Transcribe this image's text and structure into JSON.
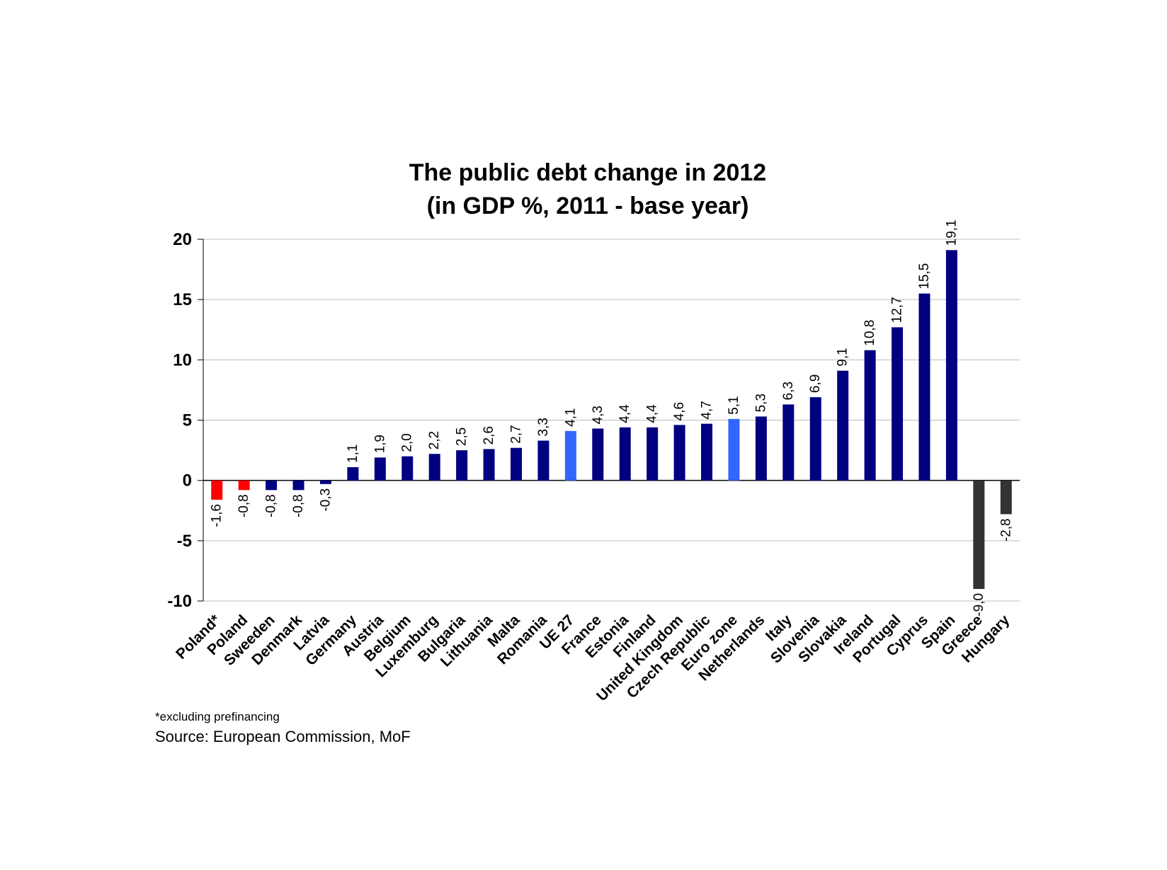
{
  "chart_data": {
    "type": "bar",
    "title": "The public debt change in 2012",
    "subtitle": "(in GDP %, 2011 - base year)",
    "xlabel": "",
    "ylabel": "",
    "ylim": [
      -10,
      20
    ],
    "yticks": [
      20,
      15,
      10,
      5,
      0,
      -5,
      -10
    ],
    "grid": true,
    "legend": "none",
    "categories": [
      "Poland*",
      "Poland",
      "Sweeden",
      "Denmark",
      "Latvia",
      "Germany",
      "Austria",
      "Belgium",
      "Luxemburg",
      "Bulgaria",
      "Lithuania",
      "Malta",
      "Romania",
      "UE 27",
      "France",
      "Estonia",
      "Finland",
      "United Kingdom",
      "Czech Republic",
      "Euro zone",
      "Netherlands",
      "Italy",
      "Slovenia",
      "Slovakia",
      "Ireland",
      "Portugal",
      "Cyprus",
      "Spain",
      "Greece",
      "Hungary"
    ],
    "values": [
      -1.6,
      -0.8,
      -0.8,
      -0.8,
      -0.3,
      1.1,
      1.9,
      2.0,
      2.2,
      2.5,
      2.6,
      2.7,
      3.3,
      4.1,
      4.3,
      4.4,
      4.4,
      4.6,
      4.7,
      5.1,
      5.3,
      6.3,
      6.9,
      9.1,
      10.8,
      12.7,
      15.5,
      19.1,
      -9.0,
      -2.8
    ],
    "value_labels": [
      "-1,6",
      "-0,8",
      "-0,8",
      "-0,8",
      "-0,3",
      "1,1",
      "1,9",
      "2,0",
      "2,2",
      "2,5",
      "2,6",
      "2,7",
      "3,3",
      "4,1",
      "4,3",
      "4,4",
      "4,4",
      "4,6",
      "4,7",
      "5,1",
      "5,3",
      "6,3",
      "6,9",
      "9,1",
      "10,8",
      "12,7",
      "15,5",
      "19,1",
      "-9,0",
      "-2,8"
    ],
    "bar_colors": [
      "#ff0000",
      "#ff0000",
      "#000080",
      "#000080",
      "#000080",
      "#000080",
      "#000080",
      "#000080",
      "#000080",
      "#000080",
      "#000080",
      "#000080",
      "#000080",
      "#3366ff",
      "#000080",
      "#000080",
      "#000080",
      "#000080",
      "#000080",
      "#3366ff",
      "#000080",
      "#000080",
      "#000080",
      "#000080",
      "#000080",
      "#000080",
      "#000080",
      "#000080",
      "#333333",
      "#333333"
    ]
  },
  "notes": {
    "footnote": "*excluding prefinancing",
    "source": "Source: European Commission, MoF"
  }
}
